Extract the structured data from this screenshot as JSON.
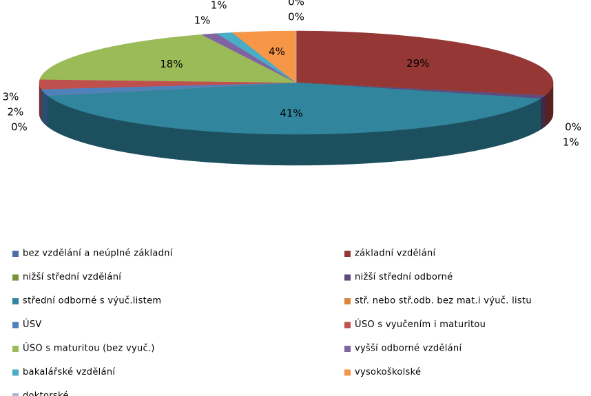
{
  "chart_data": {
    "type": "pie",
    "categories": [
      "bez vzdělání a neúplné základní",
      "základní vzdělání",
      "nižší střední vzdělání",
      "nižší střední odborné",
      "střední odborné s výuč.listem",
      "stř. nebo stř.odb. bez mat.i výuč. listu",
      "ÚSV",
      "ÚSO s vyučením i maturitou",
      "ÚSO s maturitou (bez vyuč.)",
      "vyšší odborné vzdělání",
      "bakalářské vzdělání",
      "vysokoškolské",
      "doktorské"
    ],
    "values": [
      0,
      29,
      0,
      1,
      41,
      0,
      2,
      3,
      18,
      1,
      1,
      4,
      0
    ],
    "value_labels": [
      "0%",
      "29%",
      "0%",
      "1%",
      "41%",
      "0%",
      "2%",
      "3%",
      "18%",
      "1%",
      "1%",
      "4%",
      "0%"
    ],
    "colors": [
      "#4a6fa5",
      "#953735",
      "#77933c",
      "#604a7b",
      "#31859c",
      "#d9853b",
      "#4f81bd",
      "#c0504d",
      "#9bbb59",
      "#8064a2",
      "#4bacc6",
      "#f79646",
      "#a6b8d8"
    ],
    "legend": "bottom"
  }
}
